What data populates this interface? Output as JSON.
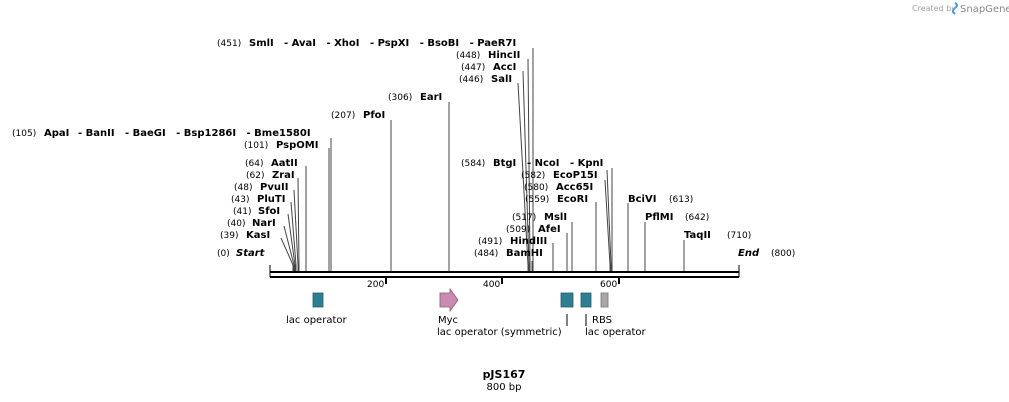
{
  "header": {
    "credit": "Created by",
    "brand": "SnapGene"
  },
  "map": {
    "name": "pJS167",
    "length_label": "800 bp",
    "start": {
      "pos": "(0)",
      "label": "Start"
    },
    "end": {
      "pos": "(800)",
      "label": "End"
    },
    "ticks": [
      "200",
      "400",
      "600"
    ]
  },
  "sites": [
    {
      "id": "kasi",
      "pos": "(39)",
      "name": "KasI"
    },
    {
      "id": "nari",
      "pos": "(40)",
      "name": "NarI"
    },
    {
      "id": "sfoi",
      "pos": "(41)",
      "name": "SfoI"
    },
    {
      "id": "pluti",
      "pos": "(43)",
      "name": "PluTI"
    },
    {
      "id": "pvuii",
      "pos": "(48)",
      "name": "PvuII"
    },
    {
      "id": "zrai",
      "pos": "(62)",
      "name": "ZraI"
    },
    {
      "id": "aatii",
      "pos": "(64)",
      "name": "AatII"
    },
    {
      "id": "pspomi",
      "pos": "(101)",
      "name": "PspOMI"
    },
    {
      "id": "apai",
      "pos": "(105)",
      "name": "ApaI",
      "extra": "- BanII   - BaeGI   - Bsp1286I   - Bme1580I"
    },
    {
      "id": "pfoi",
      "pos": "(207)",
      "name": "PfoI"
    },
    {
      "id": "eari",
      "pos": "(306)",
      "name": "EarI"
    },
    {
      "id": "smli",
      "pos": "(451)",
      "name": "SmlI",
      "extra": "- AvaI   - XhoI   - PspXI   - BsoBI   - PaeR7I"
    },
    {
      "id": "hincii",
      "pos": "(448)",
      "name": "HincII"
    },
    {
      "id": "acci",
      "pos": "(447)",
      "name": "AccI"
    },
    {
      "id": "sali",
      "pos": "(446)",
      "name": "SalI"
    },
    {
      "id": "bamhi",
      "pos": "(484)",
      "name": "BamHI"
    },
    {
      "id": "hindiii",
      "pos": "(491)",
      "name": "HindIII"
    },
    {
      "id": "afei",
      "pos": "(509)",
      "name": "AfeI"
    },
    {
      "id": "msli",
      "pos": "(517)",
      "name": "MslI"
    },
    {
      "id": "ecori",
      "pos": "(559)",
      "name": "EcoRI"
    },
    {
      "id": "acc65i",
      "pos": "(580)",
      "name": "Acc65I"
    },
    {
      "id": "ecop15i",
      "pos": "(582)",
      "name": "EcoP15I"
    },
    {
      "id": "btgi",
      "pos": "(584)",
      "name": "BtgI",
      "extra": "- NcoI   - KpnI"
    },
    {
      "id": "bcivi",
      "pos": "(613)",
      "name": "BciVI"
    },
    {
      "id": "pflmi",
      "pos": "(642)",
      "name": "PflMI"
    },
    {
      "id": "taqii",
      "pos": "(710)",
      "name": "TaqII"
    }
  ],
  "features": {
    "lac_operator_1": "lac operator",
    "myc": "Myc",
    "lac_operator_sym": "lac operator (symmetric)",
    "rbs": "RBS",
    "lac_operator_2": "lac operator"
  },
  "colors": {
    "operator": "#2f7f93",
    "myc": "#c98cb0",
    "rbs": "#a8a8a8",
    "line": "#000000"
  }
}
